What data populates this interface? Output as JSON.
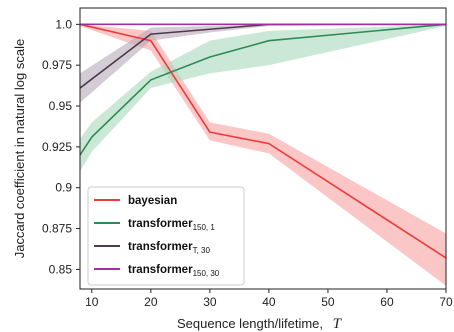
{
  "chart_data": {
    "type": "line",
    "xlabel": "Sequence length/lifetime,",
    "xlabel_symbol": "T",
    "ylabel": "Jaccard coefficient in natural log scale",
    "xlim": [
      8,
      70
    ],
    "ylim": [
      0.838,
      1.01
    ],
    "x_ticks": [
      10,
      20,
      30,
      40,
      50,
      60,
      70
    ],
    "x_tick_labels": [
      "10",
      "20",
      "30",
      "40",
      "50",
      "60",
      "70"
    ],
    "y_ticks": [
      0.85,
      0.875,
      0.9,
      0.925,
      0.95,
      0.975,
      1.0
    ],
    "y_tick_labels": [
      "0.85",
      "0.875",
      "0.9",
      "0.925",
      "0.95",
      "0.975",
      "1.0"
    ],
    "grid": false,
    "legend_position": "bottom-left",
    "series": [
      {
        "key": "bayesian",
        "name": "bayesian",
        "legend_main": "bayesian",
        "legend_sub": "",
        "color": "#ef3b3b",
        "band_color": "#f7a0a0",
        "x": [
          8,
          20,
          30,
          40,
          70
        ],
        "y": [
          1.0,
          0.99,
          0.934,
          0.927,
          0.857
        ],
        "lower": [
          0.999,
          0.984,
          0.929,
          0.921,
          0.84
        ],
        "upper": [
          1.0,
          0.996,
          0.94,
          0.933,
          0.872
        ]
      },
      {
        "key": "transformer_150_1",
        "name": "transformer150, 1",
        "legend_main": "transformer",
        "legend_sub": "150, 1",
        "color": "#2e8b57",
        "band_color": "#a8d8bc",
        "x": [
          8,
          10,
          20,
          30,
          40,
          70
        ],
        "y": [
          0.92,
          0.931,
          0.966,
          0.98,
          0.99,
          1.0
        ],
        "lower": [
          0.91,
          0.922,
          0.961,
          0.97,
          0.975,
          0.999
        ],
        "upper": [
          0.93,
          0.94,
          0.971,
          0.99,
          0.996,
          1.0
        ]
      },
      {
        "key": "transformer_T_30",
        "name": "transformerT, 30",
        "legend_main": "transformer",
        "legend_sub": "T, 30",
        "color": "#4d3a4d",
        "band_color": "#b8aab8",
        "x": [
          8,
          20,
          30,
          40,
          70
        ],
        "y": [
          0.961,
          0.994,
          0.997,
          1.0,
          1.0
        ],
        "lower": [
          0.952,
          0.99,
          0.995,
          0.999,
          1.0
        ],
        "upper": [
          0.97,
          0.998,
          0.999,
          1.0,
          1.0
        ]
      },
      {
        "key": "transformer_150_30",
        "name": "transformer150, 30",
        "legend_main": "transformer",
        "legend_sub": "150, 30",
        "color": "#a030a0",
        "band_color": "#e0b0e0",
        "x": [
          8,
          70
        ],
        "y": [
          1.0,
          1.0
        ],
        "lower": [
          1.0,
          1.0
        ],
        "upper": [
          1.0,
          1.0
        ]
      }
    ]
  }
}
